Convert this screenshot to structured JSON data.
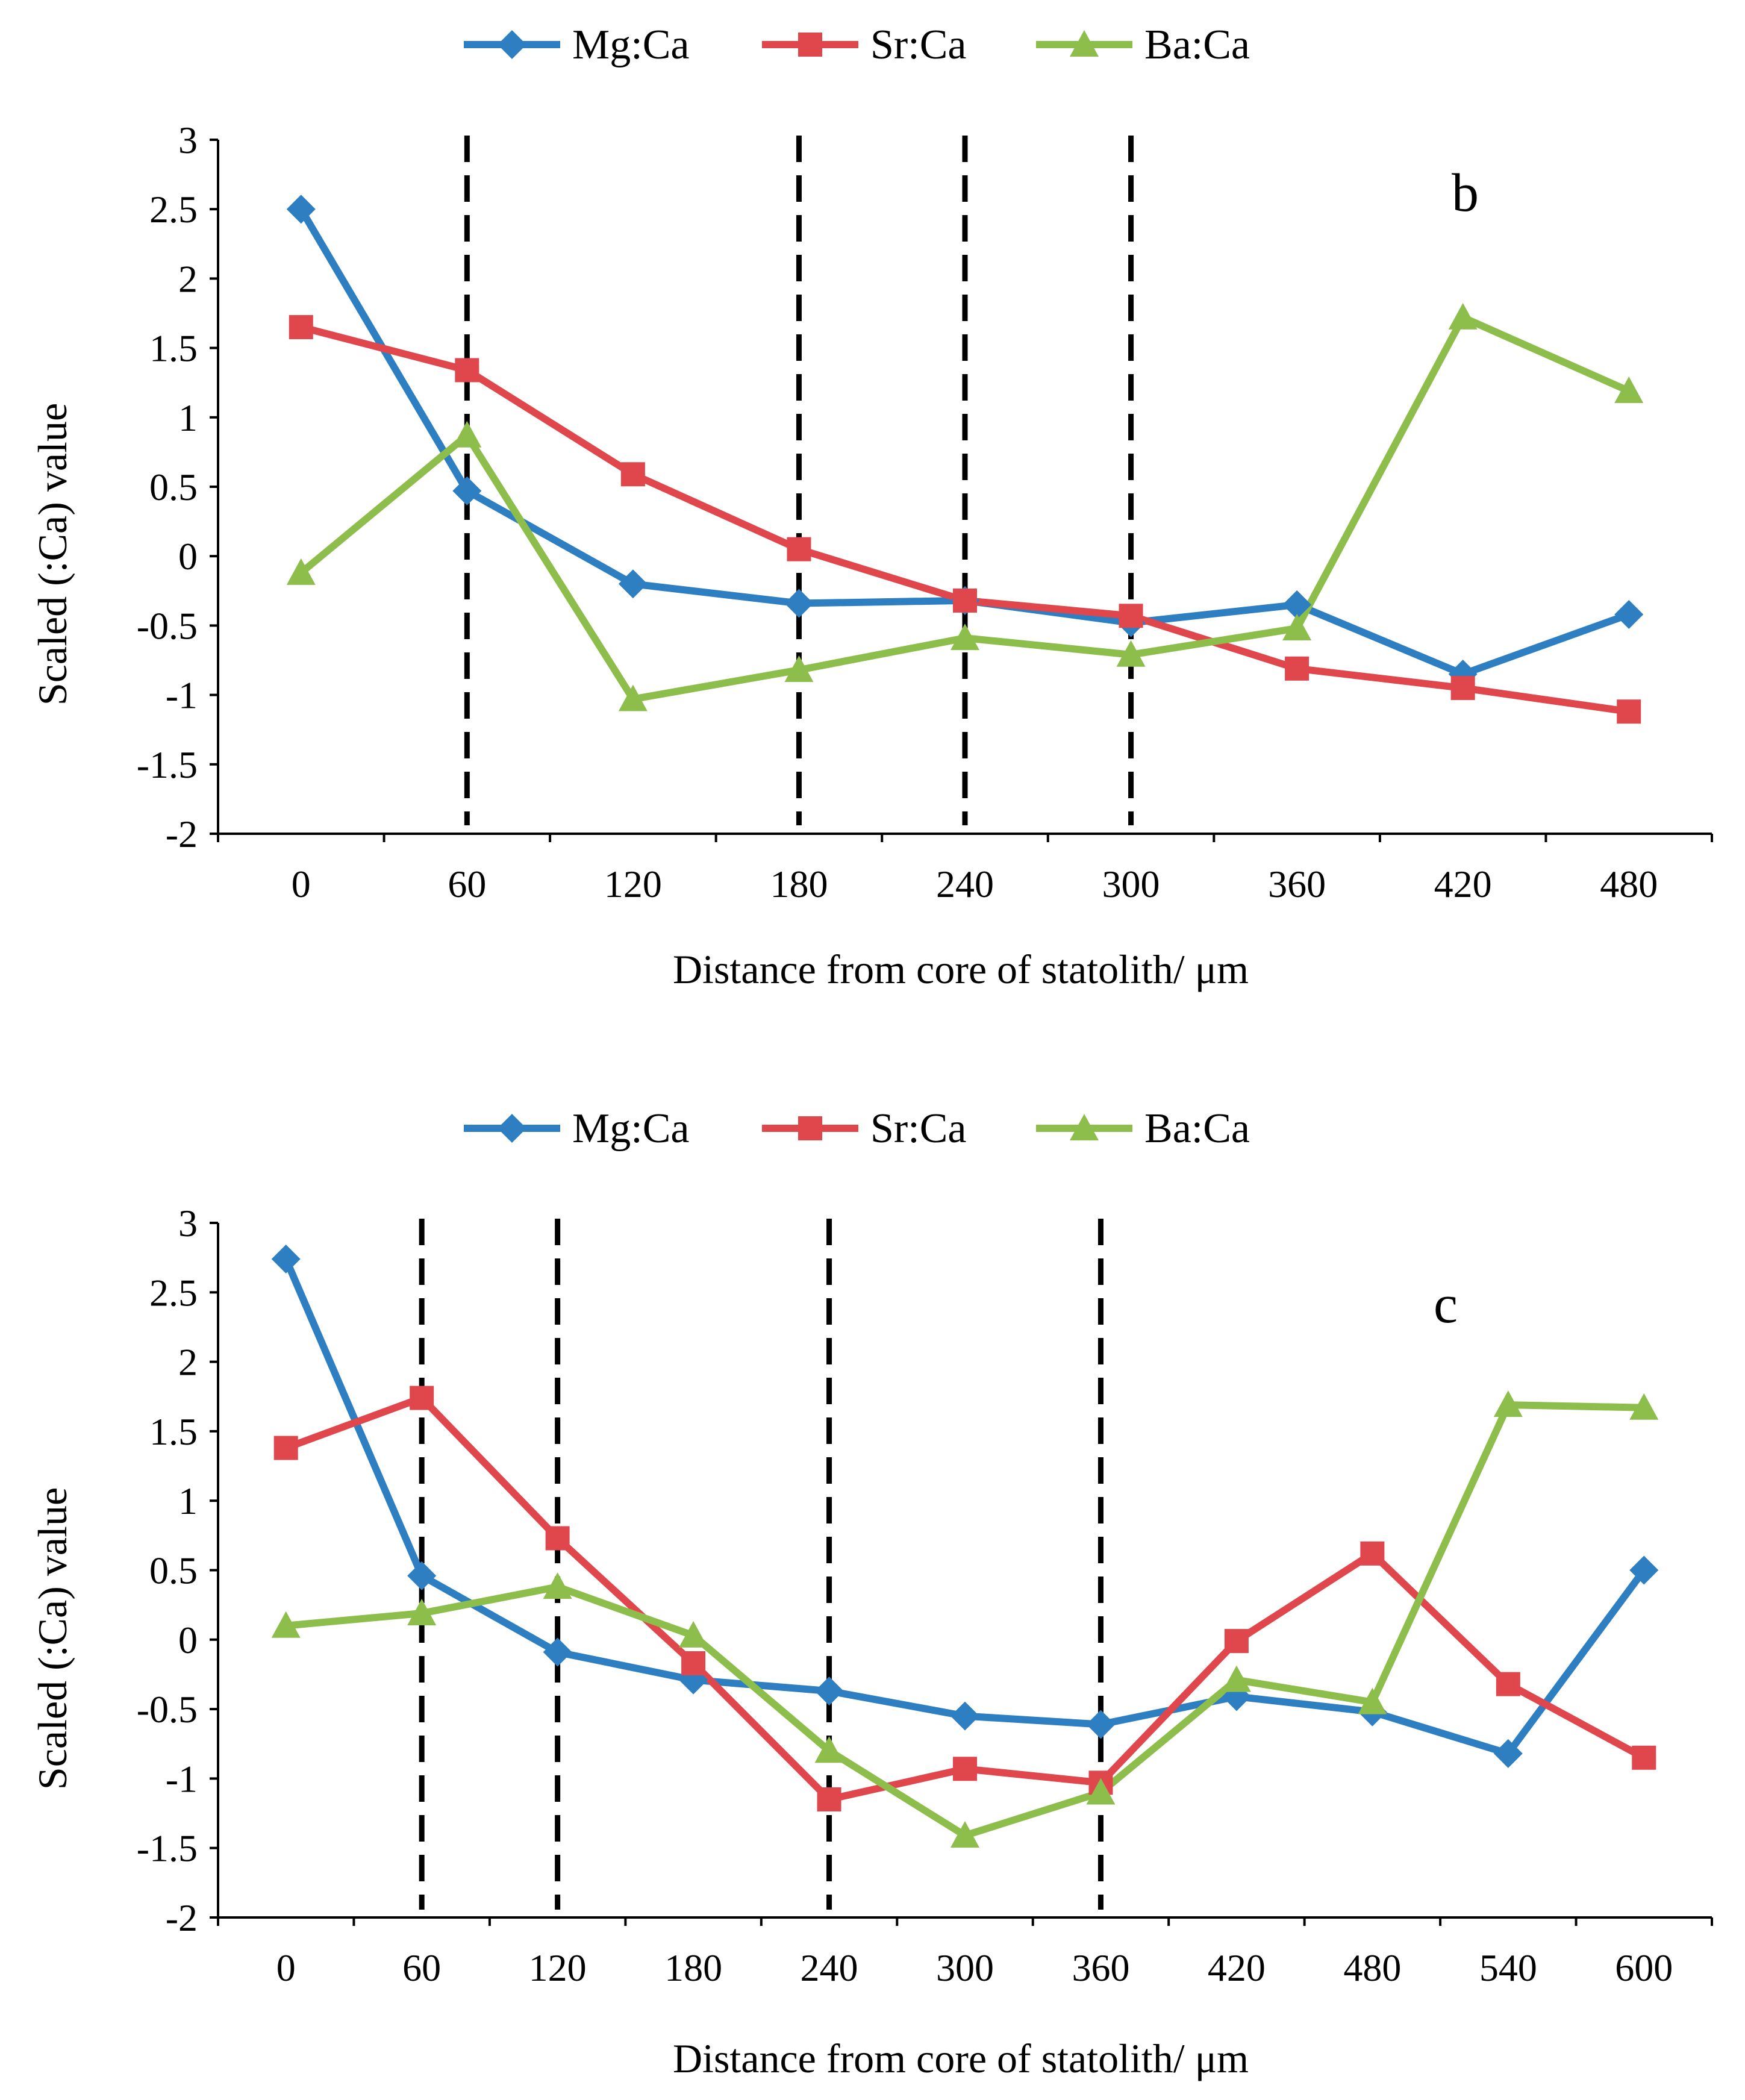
{
  "colors": {
    "mg": "#2E7FC2",
    "sr": "#E0474C",
    "ba": "#8DBE4C",
    "axis": "#000000"
  },
  "chart_data": [
    {
      "type": "line",
      "panel_label": "b",
      "legend": [
        "Mg:Ca",
        "Sr:Ca",
        "Ba:Ca"
      ],
      "legend_position": "top-center",
      "xlabel": "Distance from core of statolith/ μm",
      "ylabel": "Scaled (:Ca) value",
      "x": [
        0,
        60,
        120,
        180,
        240,
        300,
        360,
        420,
        480
      ],
      "x_tick_labels": [
        "0",
        "60",
        "120",
        "180",
        "240",
        "300",
        "360",
        "420",
        "480"
      ],
      "ylim": [
        -2,
        3
      ],
      "y_tick_labels": [
        "3",
        "2.5",
        "2",
        "1.5",
        "1",
        "0.5",
        "0",
        "-0.5",
        "-1",
        "-1.5",
        "-2"
      ],
      "y_ticks": [
        3,
        2.5,
        2,
        1.5,
        1,
        0.5,
        0,
        -0.5,
        -1,
        -1.5,
        -2
      ],
      "vertical_dashed_lines_at": [
        60,
        180,
        240,
        300
      ],
      "series": [
        {
          "name": "Mg:Ca",
          "marker": "diamond",
          "values": [
            2.5,
            0.47,
            -0.2,
            -0.34,
            -0.32,
            -0.48,
            -0.35,
            -0.85,
            -0.42
          ]
        },
        {
          "name": "Sr:Ca",
          "marker": "square",
          "values": [
            1.65,
            1.34,
            0.59,
            0.05,
            -0.32,
            -0.43,
            -0.81,
            -0.95,
            -1.12
          ]
        },
        {
          "name": "Ba:Ca",
          "marker": "triangle",
          "values": [
            -0.12,
            0.87,
            -1.03,
            -0.82,
            -0.59,
            -0.71,
            -0.52,
            1.72,
            1.19
          ]
        }
      ]
    },
    {
      "type": "line",
      "panel_label": "c",
      "legend": [
        "Mg:Ca",
        "Sr:Ca",
        "Ba:Ca"
      ],
      "legend_position": "top-center",
      "xlabel": "Distance from core of statolith/ μm",
      "ylabel": "Scaled (:Ca) value",
      "x": [
        0,
        60,
        120,
        180,
        240,
        300,
        360,
        420,
        480,
        540,
        600
      ],
      "x_tick_labels": [
        "0",
        "60",
        "120",
        "180",
        "240",
        "300",
        "360",
        "420",
        "480",
        "540",
        "600"
      ],
      "ylim": [
        -2,
        3
      ],
      "y_tick_labels": [
        "3",
        "2.5",
        "2",
        "1.5",
        "1",
        "0.5",
        "0",
        "-0.5",
        "-1",
        "-1.5",
        "-2"
      ],
      "y_ticks": [
        3,
        2.5,
        2,
        1.5,
        1,
        0.5,
        0,
        -0.5,
        -1,
        -1.5,
        -2
      ],
      "vertical_dashed_lines_at": [
        60,
        120,
        240,
        360
      ],
      "series": [
        {
          "name": "Mg:Ca",
          "marker": "diamond",
          "values": [
            2.74,
            0.46,
            -0.09,
            -0.29,
            -0.37,
            -0.55,
            -0.61,
            -0.41,
            -0.52,
            -0.82,
            0.5
          ]
        },
        {
          "name": "Sr:Ca",
          "marker": "square",
          "values": [
            1.38,
            1.74,
            0.73,
            -0.17,
            -1.15,
            -0.93,
            -1.03,
            -0.01,
            0.62,
            -0.32,
            -0.85
          ]
        },
        {
          "name": "Ba:Ca",
          "marker": "triangle",
          "values": [
            0.1,
            0.19,
            0.38,
            0.03,
            -0.8,
            -1.41,
            -1.1,
            -0.29,
            -0.45,
            1.69,
            1.67
          ]
        }
      ]
    }
  ]
}
